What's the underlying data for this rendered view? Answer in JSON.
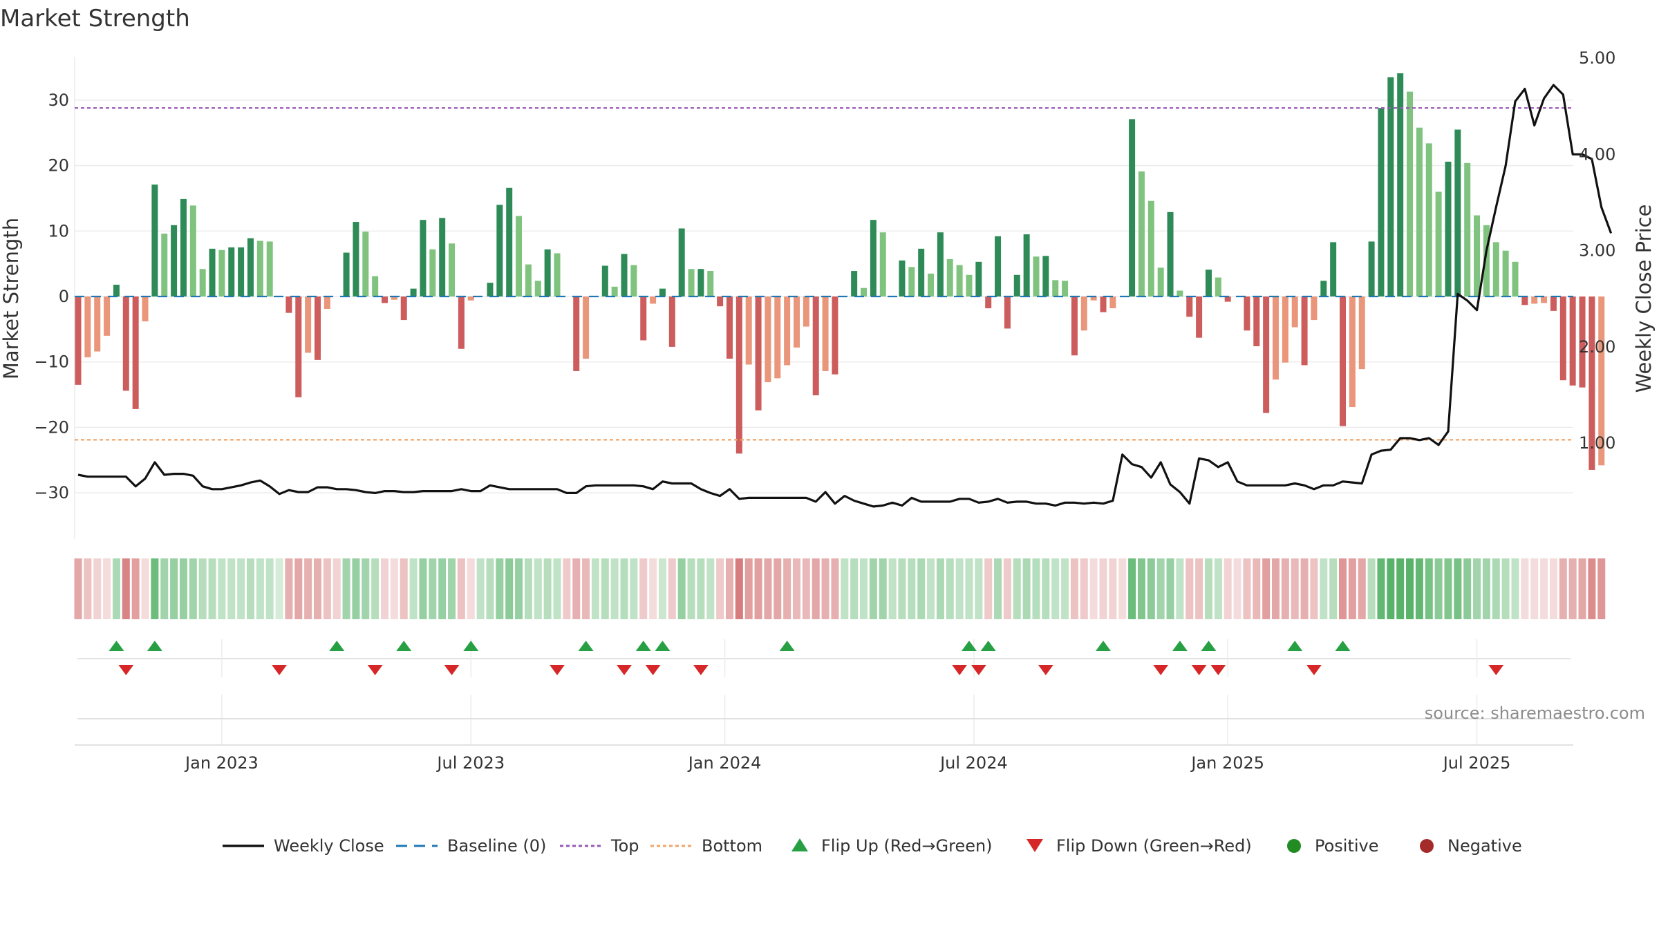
{
  "chart_data": {
    "type": "bar",
    "title": "Market Strength",
    "source": "source: sharemaestro.com",
    "y_left": {
      "label": "Market Strength",
      "ticks": [
        30,
        20,
        10,
        0,
        -10,
        -20,
        -30
      ],
      "tick_labels": [
        "30",
        "20",
        "10",
        "0",
        "−10",
        "−20",
        "−30"
      ],
      "range": [
        -36.5,
        36.5
      ]
    },
    "y_right": {
      "label": "Weekly Close Price",
      "ticks": [
        5.0,
        4.0,
        3.0,
        2.0,
        1.0
      ],
      "tick_labels": [
        "5.00",
        "4.00",
        "3.00",
        "2.00",
        "1.00"
      ],
      "range": [
        0.05,
        5.2
      ]
    },
    "x_axis": {
      "tick_labels": [
        "Jan 2023",
        "Jul 2023",
        "Jan 2024",
        "Jul 2024",
        "Jan 2025",
        "Jul 2025"
      ],
      "tick_weeks": [
        15,
        41,
        67.5,
        93.5,
        120,
        146
      ]
    },
    "reference_lines": [
      {
        "name": "Top",
        "value": 28.8,
        "color": "#9b59b6"
      },
      {
        "name": "Bottom",
        "value": -21.9,
        "color": "#f0a56b"
      },
      {
        "name": "Baseline (0)",
        "value": 0,
        "color": "#1f77b4"
      }
    ],
    "strength": [
      -13.5,
      -9.3,
      -8.4,
      -6,
      1.8,
      -14.4,
      -17.2,
      -3.8,
      17.1,
      9.6,
      10.9,
      14.9,
      13.9,
      4.2,
      7.3,
      7.1,
      7.5,
      7.5,
      8.9,
      8.5,
      8.4,
      0,
      -2.5,
      -15.4,
      -8.6,
      -9.7,
      -1.9,
      0,
      6.7,
      11.4,
      9.9,
      3.1,
      -1,
      -0.5,
      -3.6,
      1.2,
      11.7,
      7.2,
      12,
      8.1,
      -8,
      -0.6,
      0,
      2.1,
      14,
      16.6,
      12.3,
      4.9,
      2.4,
      7.2,
      6.6,
      0,
      -11.4,
      -9.5,
      0,
      4.7,
      1.5,
      6.5,
      4.8,
      -6.7,
      -1.1,
      1.2,
      -7.7,
      10.4,
      4.2,
      4.2,
      3.9,
      -1.5,
      -9.5,
      -24,
      -10.4,
      -17.4,
      -13.1,
      -12.5,
      -10.5,
      -7.8,
      -4.6,
      -15.1,
      -11.4,
      -11.9,
      0,
      3.9,
      1.3,
      11.7,
      9.8,
      0,
      5.5,
      4.5,
      7.3,
      3.5,
      9.8,
      5.7,
      4.8,
      3.3,
      5.3,
      -1.8,
      9.2,
      -4.9,
      3.3,
      9.5,
      6.1,
      6.2,
      2.5,
      2.4,
      -9,
      -5.2,
      -0.6,
      -2.4,
      -1.8,
      0,
      27.1,
      19.1,
      14.6,
      4.4,
      12.9,
      0.9,
      -3.1,
      -6.3,
      4.1,
      2.9,
      -0.8,
      0,
      -5.2,
      -7.6,
      -17.8,
      -12.7,
      -10.1,
      -4.7,
      -10.5,
      -3.6,
      2.4,
      8.3,
      -19.8,
      -16.9,
      -11.1,
      8.4,
      28.8,
      33.5,
      34.1,
      31.3,
      25.8,
      23.4,
      16,
      20.6,
      25.5,
      20.4,
      12.4,
      10.9,
      8.3,
      7,
      5.3,
      -1.3,
      -1.1,
      -1,
      -2.2,
      -12.8,
      -13.6,
      -13.9,
      -26.5,
      -25.8
    ],
    "price": [
      0.67,
      0.65,
      0.65,
      0.65,
      0.65,
      0.65,
      0.55,
      0.63,
      0.8,
      0.67,
      0.68,
      0.68,
      0.66,
      0.55,
      0.52,
      0.52,
      0.54,
      0.56,
      0.59,
      0.61,
      0.55,
      0.47,
      0.51,
      0.49,
      0.49,
      0.54,
      0.54,
      0.52,
      0.52,
      0.51,
      0.49,
      0.48,
      0.5,
      0.5,
      0.49,
      0.49,
      0.5,
      0.5,
      0.5,
      0.5,
      0.52,
      0.5,
      0.5,
      0.56,
      0.54,
      0.52,
      0.52,
      0.52,
      0.52,
      0.52,
      0.52,
      0.48,
      0.48,
      0.55,
      0.56,
      0.56,
      0.56,
      0.56,
      0.56,
      0.55,
      0.52,
      0.6,
      0.58,
      0.58,
      0.58,
      0.52,
      0.48,
      0.45,
      0.52,
      0.42,
      0.43,
      0.43,
      0.43,
      0.43,
      0.43,
      0.43,
      0.43,
      0.39,
      0.49,
      0.37,
      0.45,
      0.4,
      0.37,
      0.34,
      0.35,
      0.38,
      0.35,
      0.43,
      0.39,
      0.39,
      0.39,
      0.39,
      0.42,
      0.42,
      0.38,
      0.39,
      0.42,
      0.38,
      0.39,
      0.39,
      0.37,
      0.37,
      0.35,
      0.38,
      0.38,
      0.37,
      0.38,
      0.37,
      0.4,
      0.88,
      0.78,
      0.75,
      0.64,
      0.8,
      0.57,
      0.49,
      0.37,
      0.84,
      0.82,
      0.75,
      0.8,
      0.6,
      0.56,
      0.56,
      0.56,
      0.56,
      0.56,
      0.58,
      0.56,
      0.52,
      0.56,
      0.56,
      0.6,
      0.59,
      0.58,
      0.88,
      0.92,
      0.93,
      1.05,
      1.05,
      1.03,
      1.05,
      0.98,
      1.12,
      2.55,
      2.48,
      2.38,
      3.0,
      3.45,
      3.88,
      4.55,
      4.68,
      4.3,
      4.58,
      4.72,
      4.62,
      4.0,
      4.0,
      3.95,
      3.45,
      3.18
    ],
    "strip": [
      -0.5,
      -0.35,
      -0.25,
      -0.2,
      0.4,
      -0.7,
      -0.55,
      -0.2,
      0.7,
      0.45,
      0.5,
      0.5,
      0.45,
      0.35,
      0.35,
      0.3,
      0.3,
      0.3,
      0.35,
      0.3,
      0.3,
      0.2,
      -0.45,
      -0.5,
      -0.45,
      -0.45,
      -0.35,
      -0.25,
      0.45,
      0.5,
      0.45,
      0.35,
      -0.25,
      -0.2,
      -0.35,
      0.3,
      0.5,
      0.45,
      0.5,
      0.45,
      -0.35,
      -0.2,
      0.3,
      0.35,
      0.5,
      0.55,
      0.5,
      0.35,
      0.3,
      0.35,
      0.3,
      -0.3,
      -0.45,
      -0.4,
      0.3,
      0.35,
      0.3,
      0.35,
      0.3,
      -0.3,
      -0.2,
      0.25,
      -0.3,
      0.5,
      0.35,
      0.35,
      0.3,
      -0.3,
      -0.45,
      -0.75,
      -0.55,
      -0.55,
      -0.5,
      -0.5,
      -0.45,
      -0.4,
      -0.4,
      -0.5,
      -0.45,
      -0.45,
      0.3,
      0.35,
      0.3,
      0.45,
      0.45,
      0.3,
      0.35,
      0.35,
      0.4,
      0.3,
      0.4,
      0.35,
      0.3,
      0.3,
      0.3,
      -0.3,
      0.4,
      -0.3,
      0.35,
      0.4,
      0.35,
      0.35,
      0.3,
      0.3,
      -0.35,
      -0.3,
      -0.2,
      -0.25,
      -0.25,
      -0.2,
      0.7,
      0.6,
      0.55,
      0.45,
      0.5,
      0.3,
      -0.35,
      -0.35,
      0.35,
      0.3,
      -0.25,
      -0.2,
      -0.35,
      -0.4,
      -0.55,
      -0.5,
      -0.45,
      -0.4,
      -0.45,
      -0.35,
      0.3,
      0.35,
      -0.6,
      -0.55,
      -0.5,
      0.35,
      0.75,
      0.8,
      0.8,
      0.8,
      0.75,
      0.65,
      0.55,
      0.6,
      0.65,
      0.55,
      0.45,
      0.45,
      0.4,
      0.35,
      0.3,
      -0.2,
      -0.2,
      -0.2,
      -0.2,
      -0.45,
      -0.45,
      -0.5,
      -0.65,
      -0.6
    ],
    "flip_up_weeks": [
      4,
      8,
      27,
      34,
      41,
      53,
      59,
      61,
      74,
      93,
      95,
      107,
      115,
      118,
      127,
      132
    ],
    "flip_down_weeks": [
      5,
      21,
      31,
      39,
      50,
      57,
      60,
      65,
      92,
      94,
      101,
      113,
      117,
      119,
      129,
      148
    ],
    "legend": [
      {
        "name": "Weekly Close",
        "marker": "line",
        "color": "#111111"
      },
      {
        "name": "Baseline (0)",
        "marker": "dash",
        "color": "#1f77b4"
      },
      {
        "name": "Top",
        "marker": "dot",
        "color": "#9b59b6"
      },
      {
        "name": "Bottom",
        "marker": "dot",
        "color": "#f0a56b"
      },
      {
        "name": "Flip Up (Red→Green)",
        "marker": "triangle-up",
        "color": "#27a044"
      },
      {
        "name": "Flip Down (Green→Red)",
        "marker": "triangle-down",
        "color": "#d62728"
      },
      {
        "name": "Positive",
        "marker": "circle",
        "color": "#228b22"
      },
      {
        "name": "Negative",
        "marker": "circle",
        "color": "#a52a2a"
      }
    ],
    "colors": {
      "pos_strong": "#2e8b57",
      "pos_light": "#7fc37f",
      "neg_strong": "#cd5c5c",
      "neg_light": "#e9967a",
      "price_line": "#111111"
    }
  }
}
